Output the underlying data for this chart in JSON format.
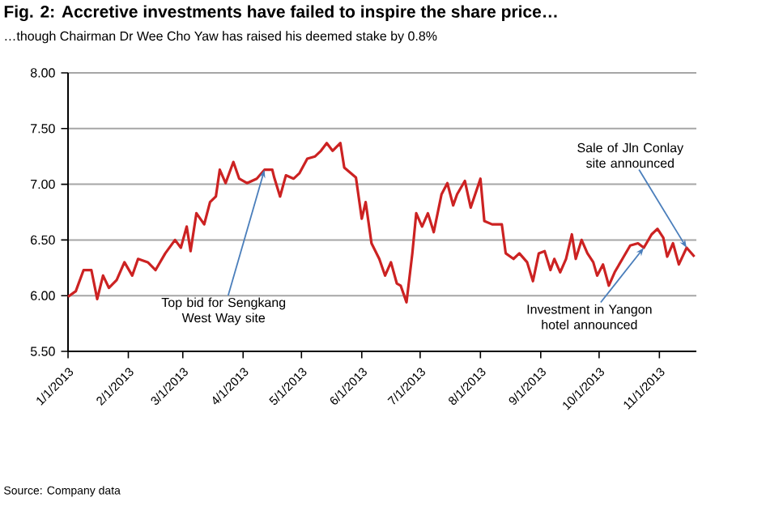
{
  "chart_data": {
    "type": "line",
    "title": "Fig. 2: Accretive investments have failed to inspire the share price…",
    "subtitle": "…though Chairman Dr Wee Cho Yaw has raised his deemed stake by 0.8%",
    "x": [
      "2013-01-01",
      "2013-01-05",
      "2013-01-09",
      "2013-01-13",
      "2013-01-16",
      "2013-01-19",
      "2013-01-22",
      "2013-01-26",
      "2013-01-30",
      "2013-02-03",
      "2013-02-06",
      "2013-02-11",
      "2013-02-15",
      "2013-02-20",
      "2013-02-25",
      "2013-02-28",
      "2013-03-03",
      "2013-03-05",
      "2013-03-08",
      "2013-03-12",
      "2013-03-15",
      "2013-03-18",
      "2013-03-20",
      "2013-03-23",
      "2013-03-27",
      "2013-03-30",
      "2013-04-03",
      "2013-04-08",
      "2013-04-12",
      "2013-04-16",
      "2013-04-17",
      "2013-04-20",
      "2013-04-23",
      "2013-04-27",
      "2013-04-30",
      "2013-05-04",
      "2013-05-08",
      "2013-05-11",
      "2013-05-14",
      "2013-05-17",
      "2013-05-21",
      "2013-05-23",
      "2013-05-29",
      "2013-06-01",
      "2013-06-03",
      "2013-06-06",
      "2013-06-10",
      "2013-06-13",
      "2013-06-16",
      "2013-06-19",
      "2013-06-21",
      "2013-06-24",
      "2013-06-27",
      "2013-06-29",
      "2013-07-02",
      "2013-07-05",
      "2013-07-08",
      "2013-07-12",
      "2013-07-15",
      "2013-07-18",
      "2013-07-20",
      "2013-07-24",
      "2013-07-27",
      "2013-08-01",
      "2013-08-03",
      "2013-08-07",
      "2013-08-12",
      "2013-08-14",
      "2013-08-18",
      "2013-08-21",
      "2013-08-25",
      "2013-08-28",
      "2013-08-31",
      "2013-09-03",
      "2013-09-06",
      "2013-09-08",
      "2013-09-11",
      "2013-09-14",
      "2013-09-17",
      "2013-09-19",
      "2013-09-22",
      "2013-09-25",
      "2013-09-28",
      "2013-09-30",
      "2013-10-03",
      "2013-10-06",
      "2013-10-09",
      "2013-10-13",
      "2013-10-17",
      "2013-10-21",
      "2013-10-24",
      "2013-10-28",
      "2013-10-31",
      "2013-11-03",
      "2013-11-05",
      "2013-11-08",
      "2013-11-11",
      "2013-11-15",
      "2013-11-19"
    ],
    "series": [
      {
        "color": "#cc2222",
        "values": [
          5.99,
          6.04,
          6.23,
          6.23,
          5.97,
          6.18,
          6.07,
          6.14,
          6.3,
          6.18,
          6.33,
          6.3,
          6.23,
          6.38,
          6.5,
          6.43,
          6.62,
          6.4,
          6.74,
          6.64,
          6.84,
          6.89,
          7.13,
          7.01,
          7.2,
          7.05,
          7.01,
          7.05,
          7.13,
          7.13,
          7.06,
          6.89,
          7.08,
          7.05,
          7.1,
          7.23,
          7.25,
          7.3,
          7.37,
          7.3,
          7.37,
          7.15,
          7.06,
          6.69,
          6.84,
          6.47,
          6.33,
          6.18,
          6.3,
          6.11,
          6.09,
          5.94,
          6.38,
          6.74,
          6.62,
          6.74,
          6.57,
          6.91,
          7.01,
          6.81,
          6.91,
          7.03,
          6.79,
          7.05,
          6.67,
          6.64,
          6.64,
          6.38,
          6.33,
          6.38,
          6.3,
          6.13,
          6.38,
          6.4,
          6.23,
          6.33,
          6.21,
          6.33,
          6.55,
          6.33,
          6.5,
          6.38,
          6.3,
          6.18,
          6.28,
          6.09,
          6.21,
          6.33,
          6.45,
          6.47,
          6.43,
          6.55,
          6.6,
          6.52,
          6.35,
          6.47,
          6.28,
          6.43,
          6.35
        ]
      }
    ],
    "xlim": [
      "2013-01-01",
      "2013-11-20"
    ],
    "xticks": [
      {
        "value": "2013-01-01",
        "label": "1/1/2013"
      },
      {
        "value": "2013-02-01",
        "label": "2/1/2013"
      },
      {
        "value": "2013-03-01",
        "label": "3/1/2013"
      },
      {
        "value": "2013-04-01",
        "label": "4/1/2013"
      },
      {
        "value": "2013-05-01",
        "label": "5/1/2013"
      },
      {
        "value": "2013-06-01",
        "label": "6/1/2013"
      },
      {
        "value": "2013-07-01",
        "label": "7/1/2013"
      },
      {
        "value": "2013-08-01",
        "label": "8/1/2013"
      },
      {
        "value": "2013-09-01",
        "label": "9/1/2013"
      },
      {
        "value": "2013-10-01",
        "label": "10/1/2013"
      },
      {
        "value": "2013-11-01",
        "label": "11/1/2013"
      }
    ],
    "ylim": [
      5.5,
      8.0
    ],
    "yticks": [
      {
        "value": 5.5,
        "label": "5.50"
      },
      {
        "value": 6.0,
        "label": "6.00"
      },
      {
        "value": 6.5,
        "label": "6.50"
      },
      {
        "value": 7.0,
        "label": "7.00"
      },
      {
        "value": 7.5,
        "label": "7.50"
      },
      {
        "value": 8.0,
        "label": "8.00"
      }
    ],
    "grid": "y",
    "annotations": [
      {
        "text": "Top bid for Sengkang West Way site",
        "x": "2013-04-12",
        "y": 7.13
      },
      {
        "text": "Sale of Jln Conlay site announced",
        "x": "2013-11-15",
        "y": 6.43
      },
      {
        "text": "Investment in Yangon hotel announced",
        "x": "2013-10-24",
        "y": 6.43
      },
      "Source: Company data"
    ]
  }
}
